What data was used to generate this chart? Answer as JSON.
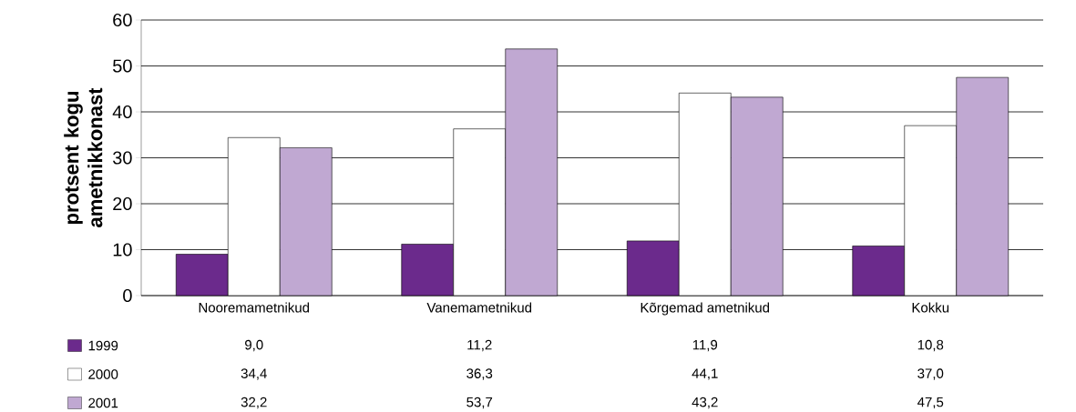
{
  "chart_data": {
    "type": "bar",
    "ylabel": "protsent kogu ametnikkonast",
    "categories": [
      "Nooremametnikud",
      "Vanemametnikud",
      "Kõrgemad ametnikud",
      "Kokku"
    ],
    "series": [
      {
        "name": "1999",
        "color": "#6b2a8c",
        "values": [
          9.0,
          11.2,
          11.9,
          10.8
        ],
        "value_labels": [
          "9,0",
          "11,2",
          "11,9",
          "10,8"
        ]
      },
      {
        "name": "2000",
        "color": "#ffffff",
        "values": [
          34.4,
          36.3,
          44.1,
          37.0
        ],
        "value_labels": [
          "34,4",
          "36,3",
          "44,1",
          "37,0"
        ]
      },
      {
        "name": "2001",
        "color": "#c0a8d2",
        "values": [
          32.2,
          53.7,
          43.2,
          47.5
        ],
        "value_labels": [
          "32,2",
          "53,7",
          "43,2",
          "47,5"
        ]
      }
    ],
    "ylim": [
      0,
      60
    ],
    "yticks": [
      0,
      10,
      20,
      30,
      40,
      50,
      60
    ],
    "grid": "y",
    "legend": "bottom"
  }
}
